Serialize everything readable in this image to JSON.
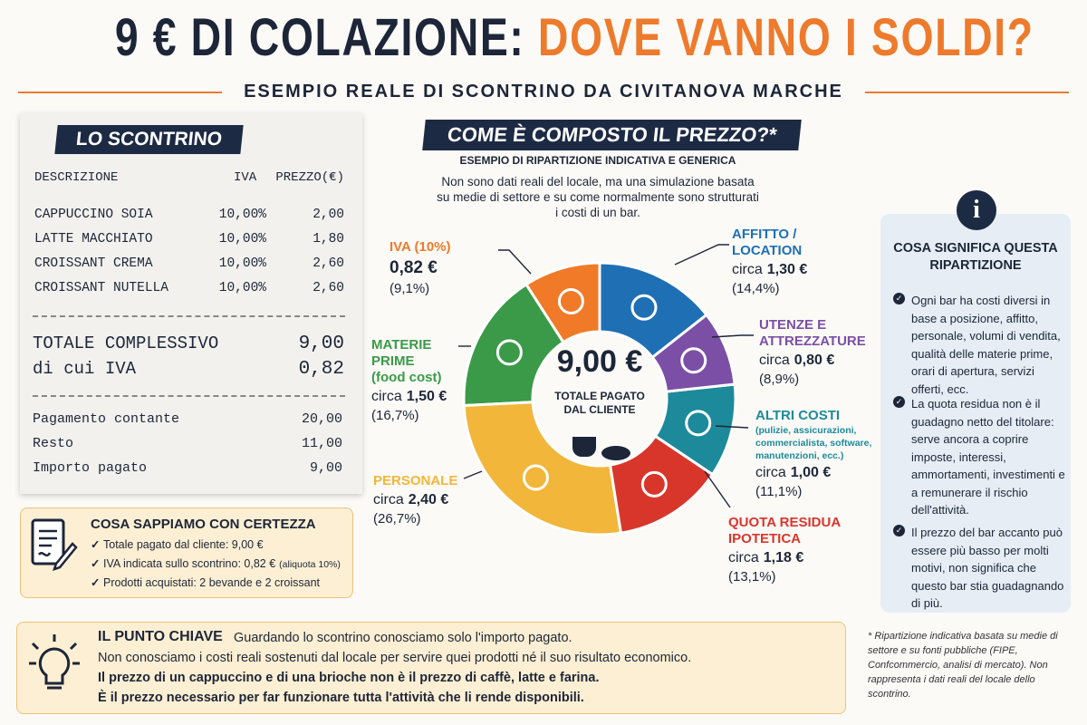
{
  "header": {
    "title_part1": "9 € DI COLAZIONE:",
    "title_part2": "DOVE VANNO I SOLDI?",
    "subtitle": "ESEMPIO REALE DI SCONTRINO DA CIVITANOVA MARCHE"
  },
  "receipt": {
    "title": "LO SCONTRINO",
    "columns": [
      "DESCRIZIONE",
      "IVA",
      "PREZZO(€)"
    ],
    "items": [
      [
        "CAPPUCCINO SOIA",
        "10,00%",
        "2,00"
      ],
      [
        "LATTE MACCHIATO",
        "10,00%",
        "1,80"
      ],
      [
        "CROISSANT CREMA",
        "10,00%",
        "2,60"
      ],
      [
        "CROISSANT NUTELLA",
        "10,00%",
        "2,60"
      ]
    ],
    "totals": [
      [
        "TOTALE COMPLESSIVO",
        "9,00"
      ],
      [
        "di cui IVA",
        "0,82"
      ]
    ],
    "payments": [
      [
        "Pagamento contante",
        "20,00"
      ],
      [
        "Resto",
        "11,00"
      ],
      [
        "Importo pagato",
        "9,00"
      ]
    ]
  },
  "certainty": {
    "title": "COSA SAPPIAMO CON CERTEZZA",
    "items": [
      "Totale pagato dal cliente: 9,00 €",
      "IVA indicata sullo scontrino: 0,82 €",
      "Prodotti acquistati: 2 bevande e 2 croissant"
    ],
    "item_note": "(aliquota 10%)"
  },
  "chart_data": {
    "type": "donut",
    "title": "COME È COMPOSTO IL PREZZO?*",
    "subtitle": "ESEMPIO DI RIPARTIZIONE INDICATIVA E GENERICA",
    "note": "Non sono dati reali del locale, ma una simulazione basata su medie di settore e su come normalmente sono strutturati i costi di un bar.",
    "center_value": "9,00 €",
    "center_label": "TOTALE PAGATO DAL CLIENTE",
    "categories": [
      "AFFITTO / LOCATION",
      "UTENZE E ATTREZZATURE",
      "ALTRI COSTI",
      "QUOTA RESIDUA IPOTETICA",
      "PERSONALE",
      "MATERIE PRIME",
      "IVA (10%)"
    ],
    "category_notes": [
      null,
      null,
      "(pulizie, assicurazioni, commercialista, software, manutenzioni, ecc.)",
      null,
      null,
      "(food cost)",
      null
    ],
    "amount_prefixes": [
      "circa",
      "circa",
      "circa",
      "circa",
      "circa",
      "circa",
      null
    ],
    "amount_labels": [
      "1,30 €",
      "0,80 €",
      "1,00 €",
      "1,18 €",
      "2,40 €",
      "1,50 €",
      "0,82 €"
    ],
    "values": [
      14.4,
      8.9,
      11.1,
      13.1,
      26.7,
      16.7,
      9.1
    ],
    "value_labels": [
      "(14,4%)",
      "(8,9%)",
      "(11,1%)",
      "(13,1%)",
      "(26,7%)",
      "(16,7%)",
      "(9,1%)"
    ],
    "colors": [
      "#1f6fb5",
      "#7b4fa6",
      "#1c8a9a",
      "#d9362b",
      "#f2b63a",
      "#3a9a48",
      "#f07a28"
    ]
  },
  "info": {
    "title": "COSA SIGNIFICA QUESTA RIPARTIZIONE",
    "items": [
      "Ogni bar ha costi diversi in base a posizione, affitto, personale, volumi di vendita, qualità delle materie prime, orari di apertura, servizi offerti, ecc.",
      "La quota residua non è il guadagno netto del titolare: serve ancora a coprire imposte, interessi, ammortamenti, investimenti e a remunerare il rischio dell'attività.",
      "Il prezzo del bar accanto può essere più basso per molti motivi, non significa che questo bar stia guadagnando di più."
    ]
  },
  "key_point": {
    "title": "IL PUNTO CHIAVE",
    "lines": [
      "Guardando lo scontrino conosciamo solo l'importo pagato.",
      "Non conosciamo i costi reali sostenuti dal locale per servire quei prodotti né il suo risultato economico.",
      "Il prezzo di un cappuccino e di una brioche non è il prezzo di caffè, latte e farina.",
      "È il prezzo necessario per far funzionare tutta l'attività che li rende disponibili."
    ]
  },
  "footnote": "* Ripartizione indicativa basata su medie di settore e su fonti pubbliche (FIPE, Confcommercio, analisi di mercato). Non rappresenta i dati reali del locale dello scontrino."
}
